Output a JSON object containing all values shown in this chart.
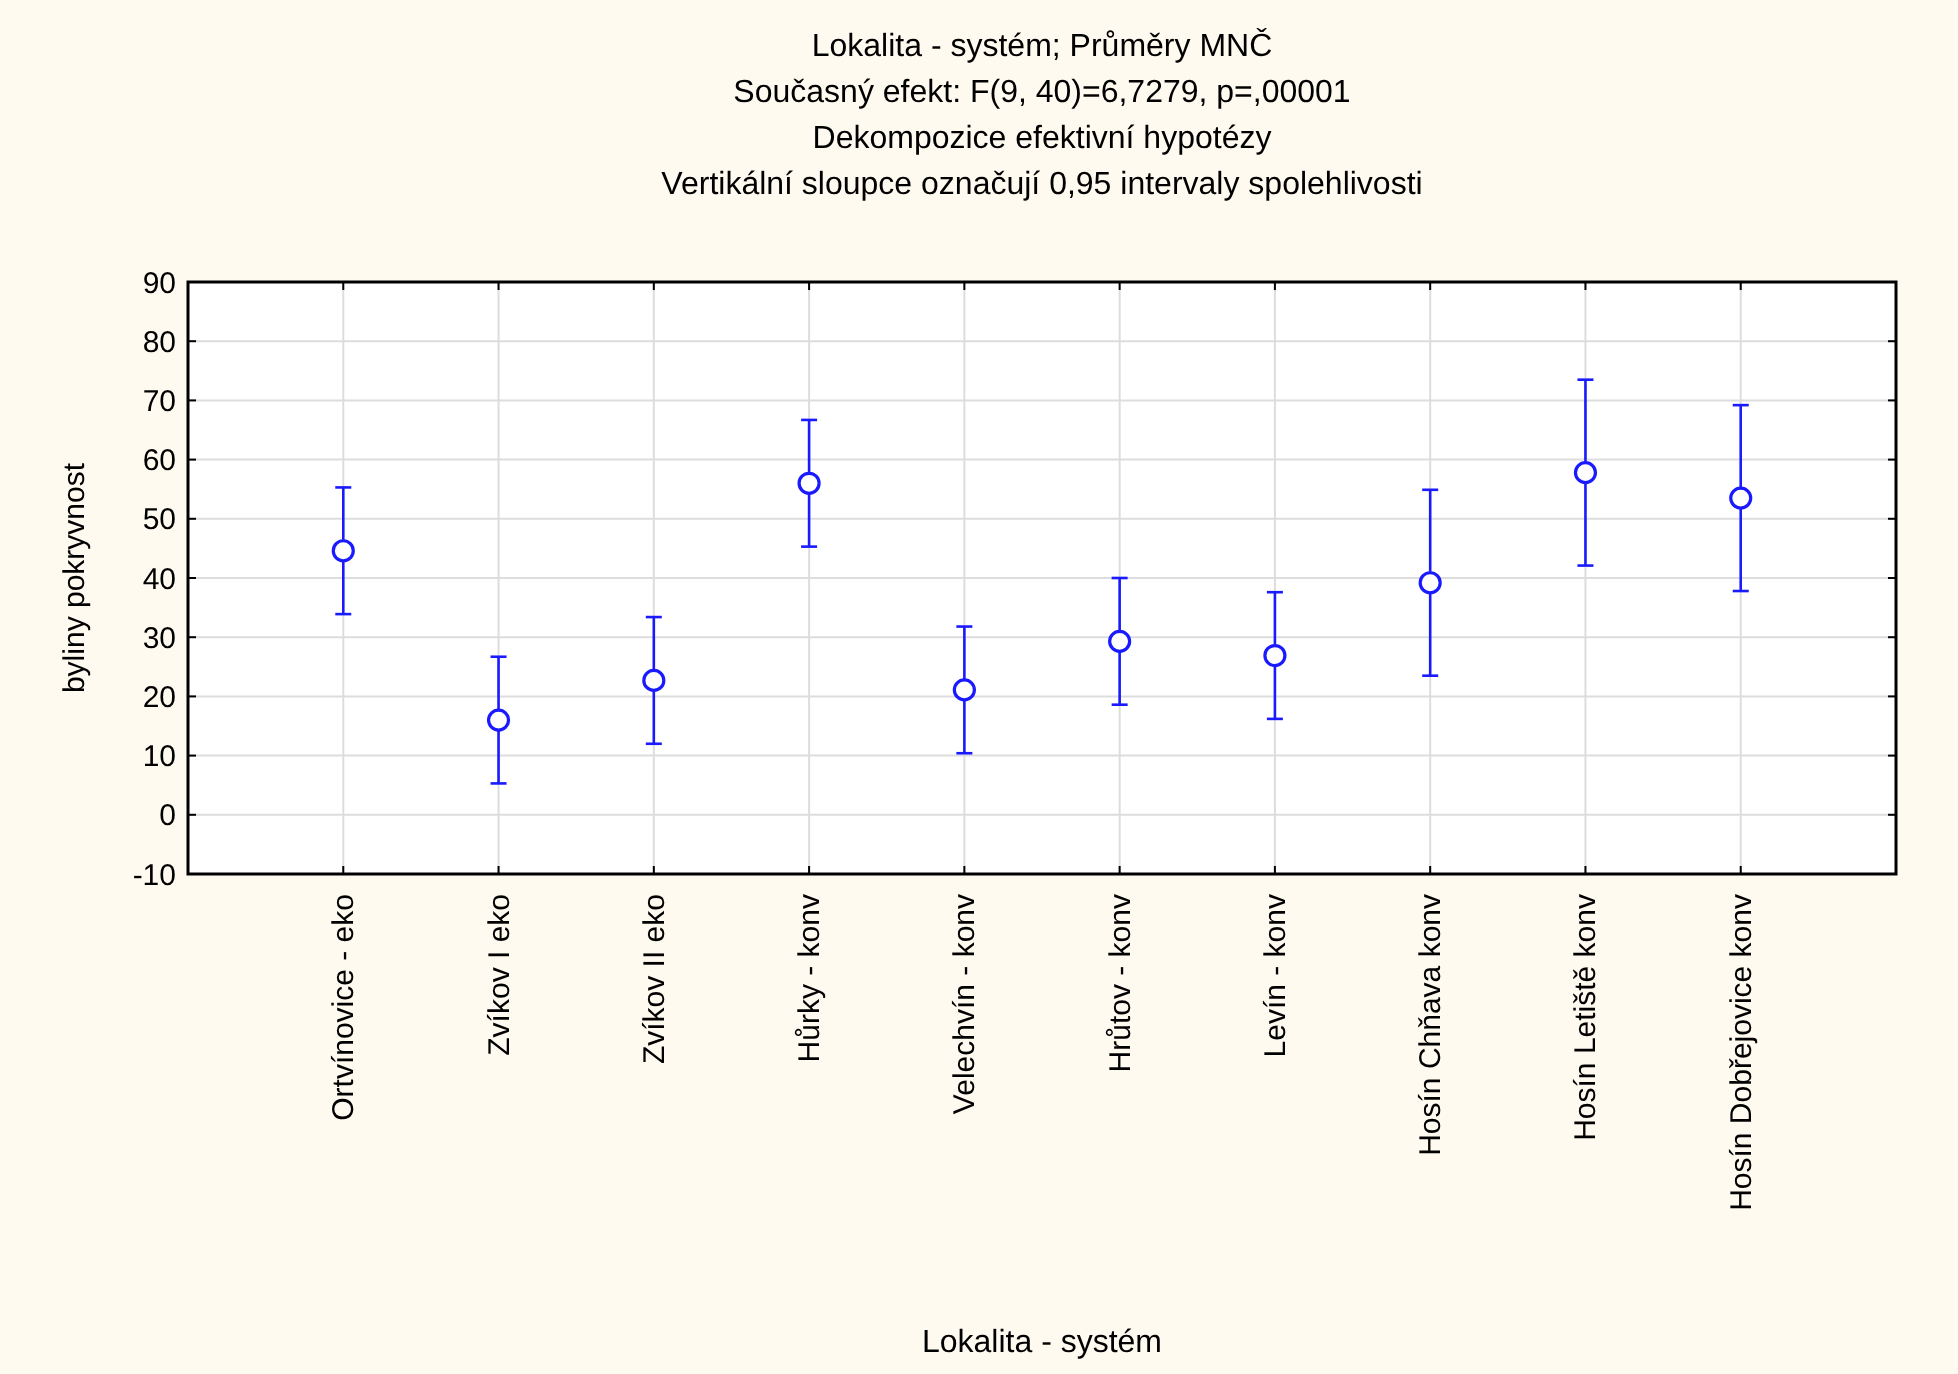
{
  "chart_data": {
    "type": "scatter",
    "title": "Lokalita - systém; Průměry MNČ",
    "subtitle": "Současný efekt: F(9, 40)=6,7279, p=,00001",
    "annotations": [
      "Dekompozice efektivní hypotézy",
      "Vertikální sloupce označují 0,95 intervaly spolehlivosti"
    ],
    "xlabel": "Lokalita - systém",
    "ylabel": "byliny pokryvnost",
    "categories": [
      "Ortvínovice - eko",
      "Zvíkov I eko",
      "Zvíkov II eko",
      "Hůrky - konv",
      "Velechvín - konv",
      "Hrůtov - konv",
      "Levín - konv",
      "Hosín Chňava konv",
      "Hosín Letiště konv",
      "Hosín Dobřejovice konv"
    ],
    "values": [
      44.6,
      16.0,
      22.7,
      56.0,
      21.1,
      29.3,
      26.9,
      39.2,
      57.8,
      53.5
    ],
    "errors": [
      10.7,
      10.7,
      10.7,
      10.7,
      10.7,
      10.7,
      10.7,
      15.7,
      15.7,
      15.7
    ],
    "color": "#1a1aff",
    "marker": "circle",
    "grid": true,
    "ylim": [
      -10,
      90
    ],
    "yticks": [
      -10,
      0,
      10,
      20,
      30,
      40,
      50,
      60,
      70,
      80,
      90
    ]
  }
}
